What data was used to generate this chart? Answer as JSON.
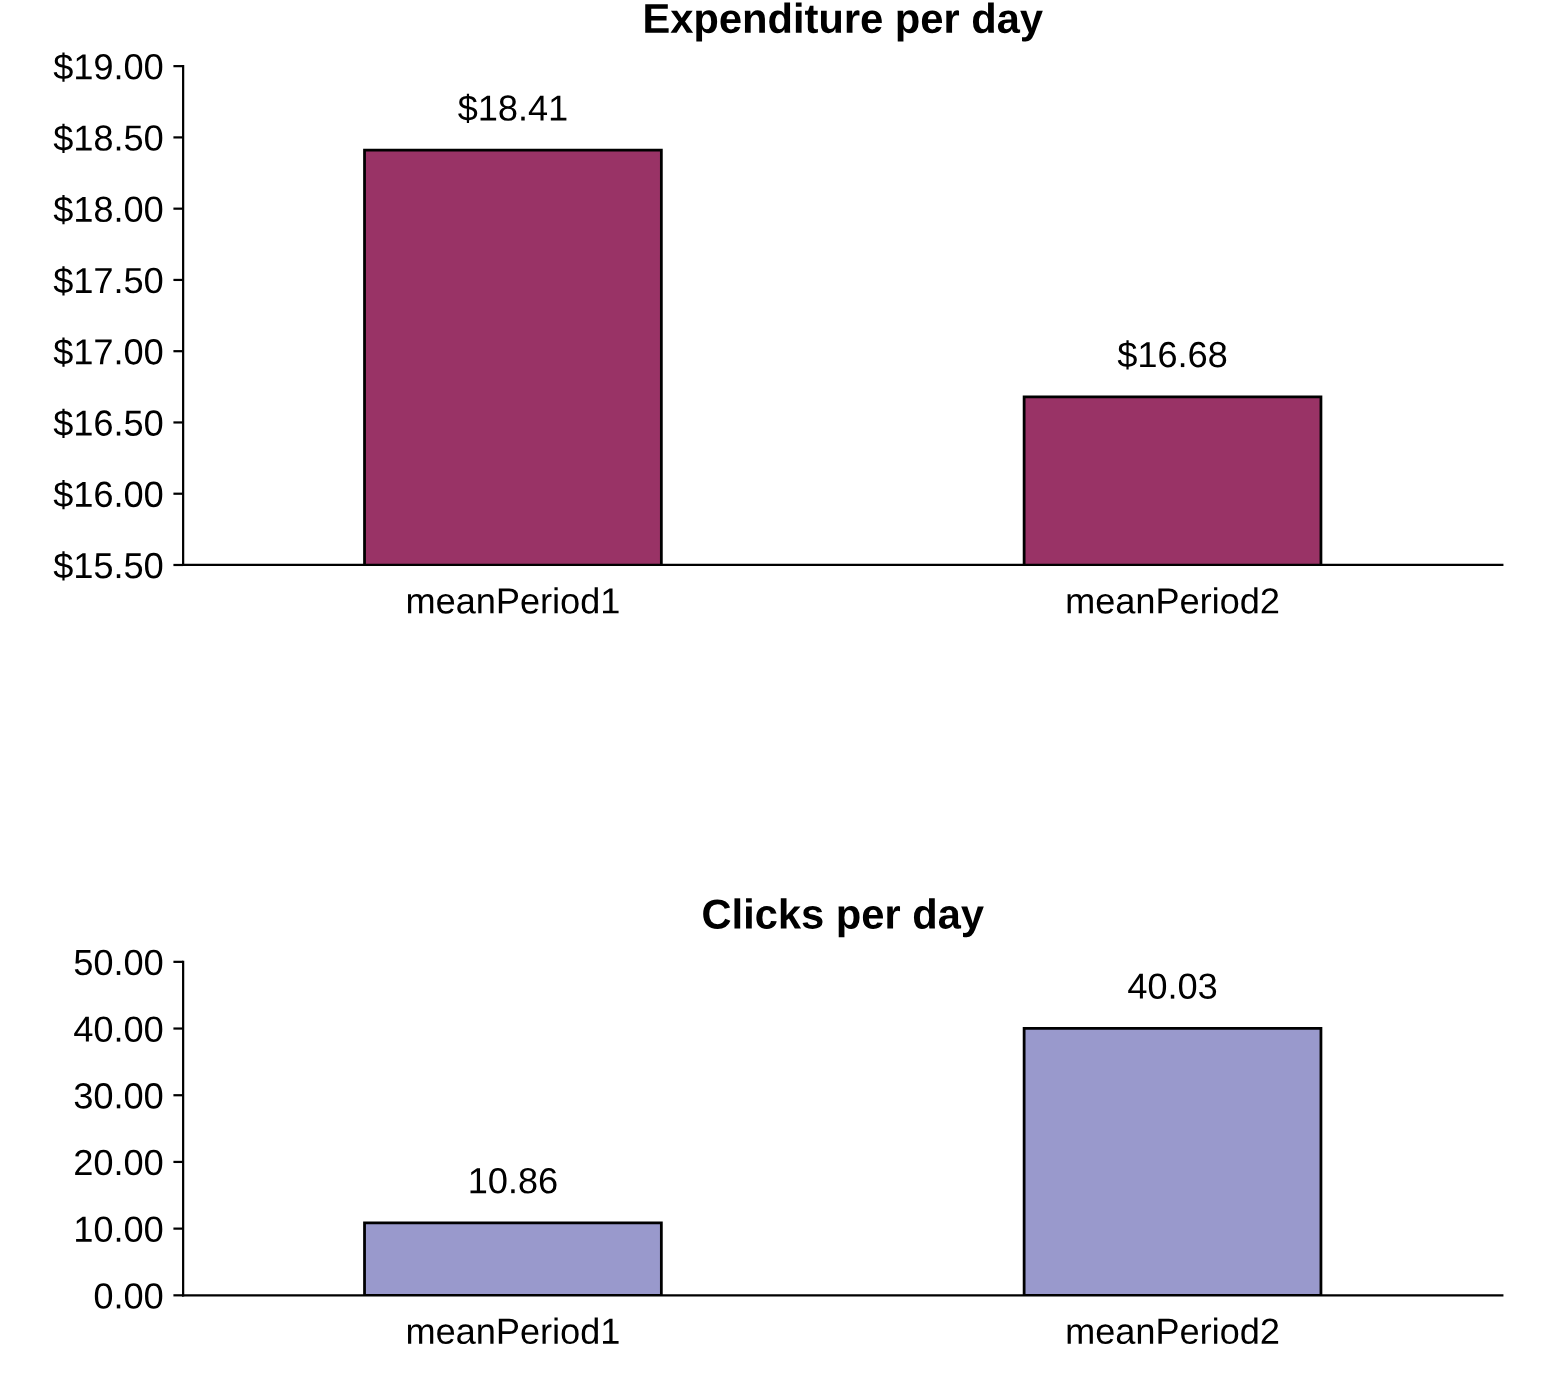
{
  "chart_data": [
    {
      "type": "bar",
      "title": "Expenditure per day",
      "categories": [
        "meanPeriod1",
        "meanPeriod2"
      ],
      "values": [
        18.41,
        16.68
      ],
      "color": "#993366",
      "value_labels": [
        "$18.41",
        "$16.68"
      ],
      "ylim": [
        15.5,
        19
      ],
      "yticks": [
        {
          "value": 15.5,
          "label": "$15.50"
        },
        {
          "value": 16,
          "label": "$16.00"
        },
        {
          "value": 16.5,
          "label": "$16.50"
        },
        {
          "value": 17,
          "label": "$17.00"
        },
        {
          "value": 17.5,
          "label": "$17.50"
        },
        {
          "value": 18,
          "label": "$18.00"
        },
        {
          "value": 18.5,
          "label": "$18.50"
        },
        {
          "value": 19,
          "label": "$19.00"
        }
      ],
      "grid": false,
      "legend": false
    },
    {
      "type": "bar",
      "title": "Clicks per day",
      "categories": [
        "meanPeriod1",
        "meanPeriod2"
      ],
      "values": [
        10.86,
        40.03
      ],
      "color": "#9999cc",
      "data_labels": true,
      "ylim": [
        0,
        50
      ],
      "yticks": [
        {
          "value": 0,
          "label": "0.00"
        },
        {
          "value": 10,
          "label": "10.00"
        },
        {
          "value": 20,
          "label": "20.00"
        },
        {
          "value": 30,
          "label": "30.00"
        },
        {
          "value": 40,
          "label": "40.00"
        },
        {
          "value": 50,
          "label": "50.00"
        }
      ],
      "grid": false,
      "legend": false
    }
  ]
}
